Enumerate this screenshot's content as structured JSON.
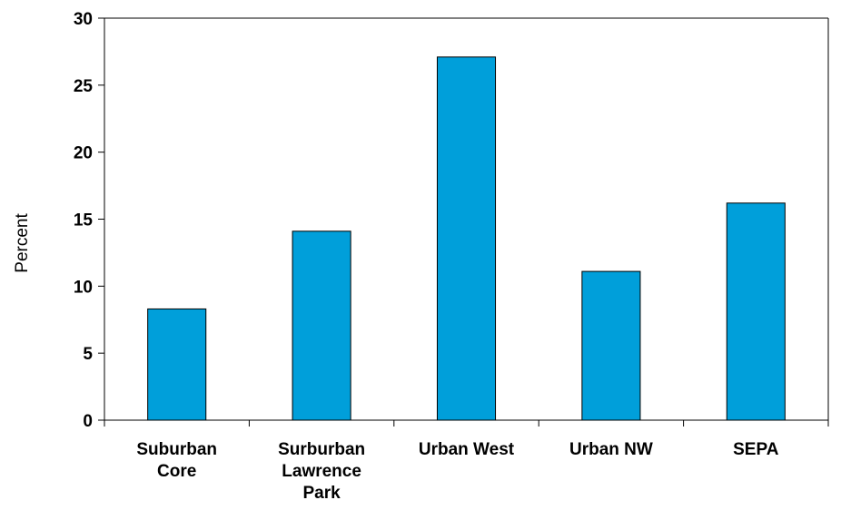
{
  "chart_data": {
    "type": "bar",
    "categories": [
      [
        "Suburban",
        "Core"
      ],
      [
        "Surburban",
        "Lawrence",
        "Park"
      ],
      [
        "Urban West"
      ],
      [
        "Urban NW"
      ],
      [
        "SEPA"
      ]
    ],
    "values": [
      8.3,
      14.1,
      27.1,
      11.1,
      16.2
    ],
    "title": "",
    "xlabel": "",
    "ylabel": "Percent",
    "ylim": [
      0,
      30
    ],
    "yticks": [
      0,
      5,
      10,
      15,
      20,
      25,
      30
    ],
    "grid": false,
    "legend": "none",
    "colors": {
      "bar": "#009FDA",
      "bar_stroke": "#000000",
      "axis": "#000000"
    }
  }
}
